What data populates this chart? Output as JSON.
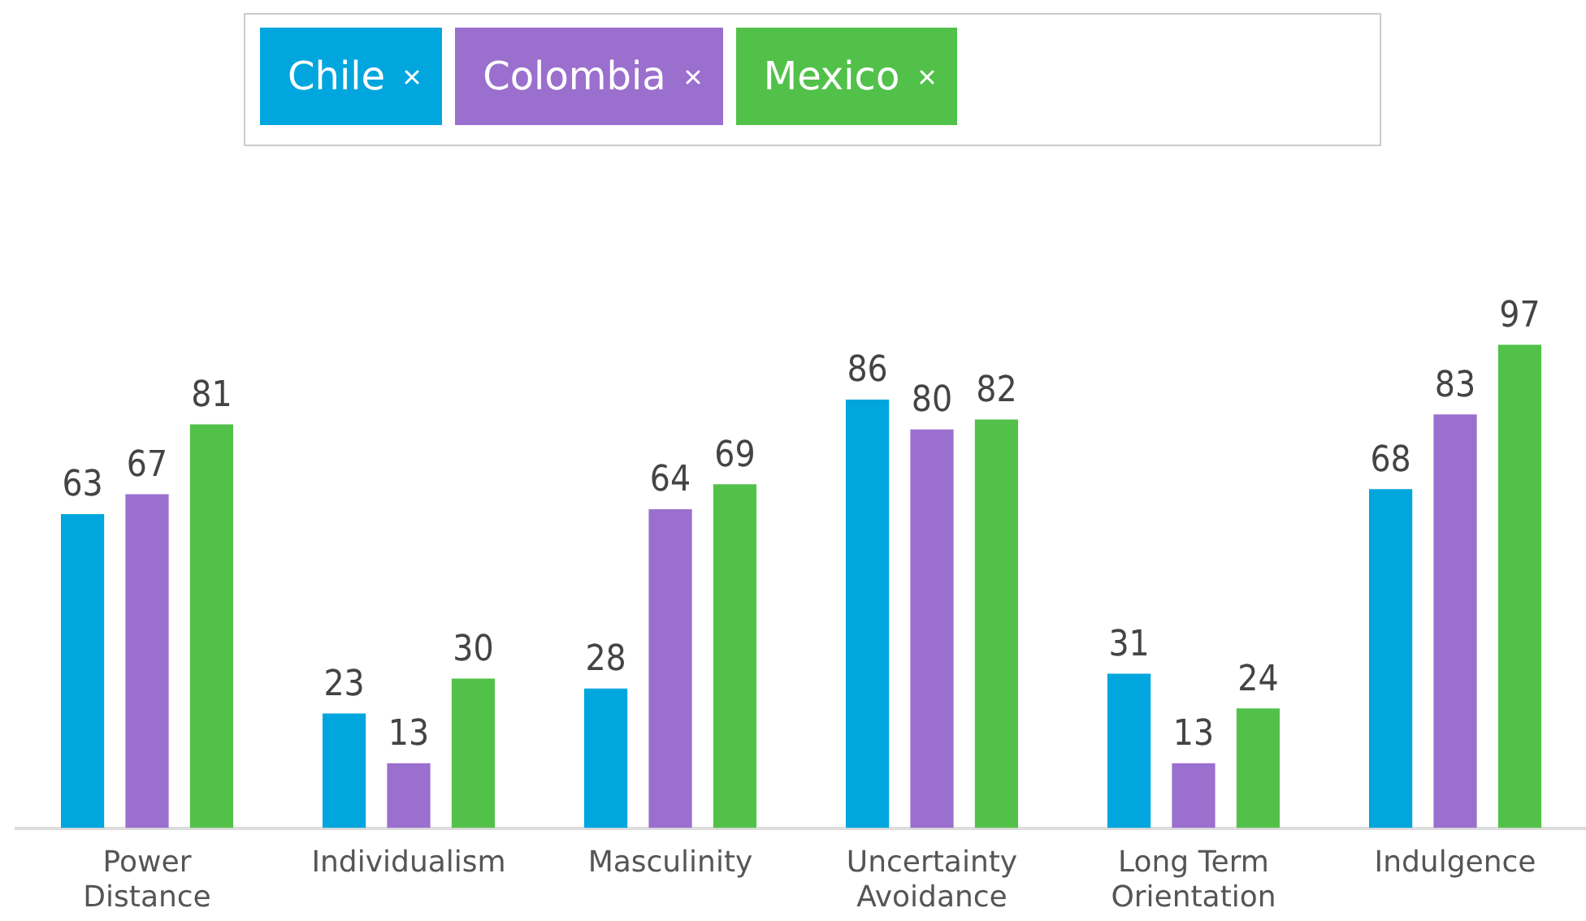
{
  "chart_data": {
    "type": "bar",
    "categories": [
      "Power Distance",
      "Individualism",
      "Masculinity",
      "Uncertainty Avoidance",
      "Long Term Orientation",
      "Indulgence"
    ],
    "series": [
      {
        "name": "Chile",
        "color": "#00a6dd",
        "values": [
          63,
          23,
          28,
          86,
          31,
          68
        ]
      },
      {
        "name": "Colombia",
        "color": "#9b6fcd",
        "values": [
          67,
          13,
          64,
          80,
          13,
          83
        ]
      },
      {
        "name": "Mexico",
        "color": "#52c14a",
        "values": [
          81,
          30,
          69,
          82,
          24,
          97
        ]
      }
    ],
    "data_labels": true,
    "legend": "top",
    "grid": false
  }
}
